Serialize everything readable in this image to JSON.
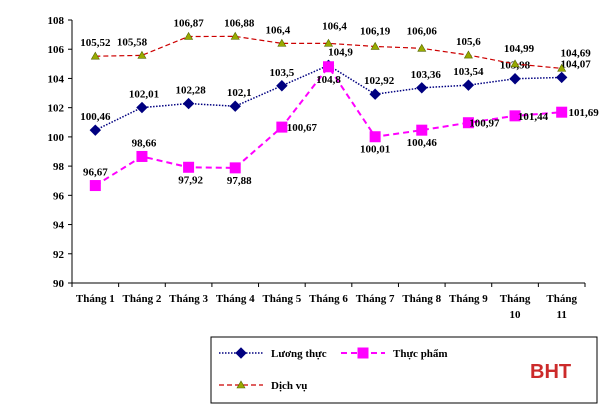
{
  "chart_data": {
    "type": "line",
    "categories": [
      "Tháng 1",
      "Tháng 2",
      "Tháng 3",
      "Tháng 4",
      "Tháng 5",
      "Tháng 6",
      "Tháng 7",
      "Tháng 8",
      "Tháng 9",
      "Tháng 10",
      "Tháng 11"
    ],
    "ylim": [
      90,
      108
    ],
    "yticks": [
      90,
      92,
      94,
      96,
      98,
      100,
      102,
      104,
      106,
      108
    ],
    "grid": false,
    "legend_position": "bottom",
    "series": [
      {
        "name": "Lương thực",
        "color": "#000080",
        "marker": "diamond",
        "values": [
          100.46,
          102.01,
          102.28,
          102.1,
          103.5,
          104.9,
          102.92,
          103.36,
          103.54,
          103.98,
          104.07
        ],
        "labels": [
          "100,46",
          "102,01",
          "102,28",
          "102,1",
          "103,5",
          "104,9",
          "102,92",
          "103,36",
          "103,54",
          "103,98",
          "104,07"
        ]
      },
      {
        "name": "Thực phẩm",
        "color": "#ff00ff",
        "marker": "square",
        "values": [
          96.67,
          98.66,
          97.92,
          97.88,
          100.67,
          104.8,
          100.01,
          100.46,
          100.97,
          101.44,
          101.69
        ],
        "labels": [
          "96,67",
          "98,66",
          "97,92",
          "97,88",
          "100,67",
          "104,8",
          "100,01",
          "100,46",
          "100,97",
          "101,44",
          "101,69"
        ]
      },
      {
        "name": "Dịch vụ",
        "color": "#cc0000",
        "marker": "triangle",
        "values": [
          105.52,
          105.58,
          106.87,
          106.88,
          106.4,
          106.4,
          106.19,
          106.06,
          105.6,
          104.99,
          104.69
        ],
        "labels": [
          "105,52",
          "105,58",
          "106,87",
          "106,88",
          "106,4",
          "106,4",
          "106,19",
          "106,06",
          "105,6",
          "104,99",
          "104,69"
        ]
      }
    ],
    "watermark": "BHT"
  }
}
